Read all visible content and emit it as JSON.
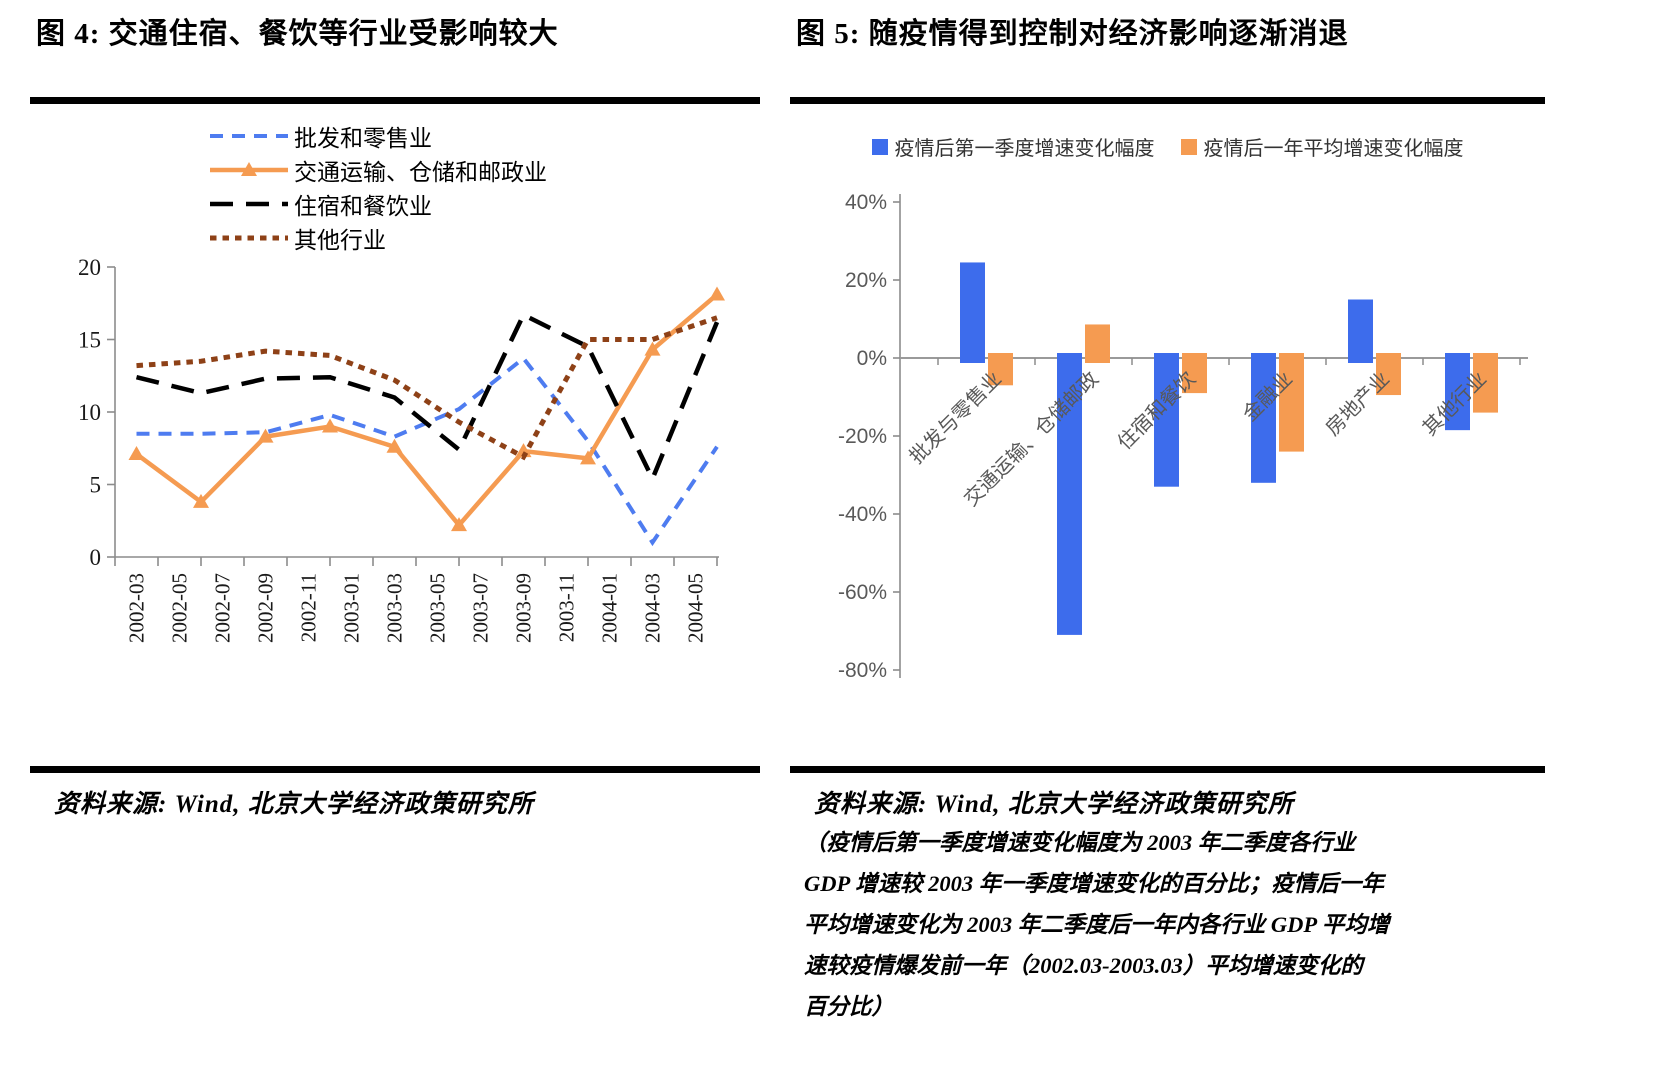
{
  "figure4": {
    "title": "图 4: 交通住宿、餐饮等行业受影响较大",
    "source": "资料来源: Wind, 北京大学经济政策研究所"
  },
  "figure5": {
    "title": "图 5: 随疫情得到控制对经济影响逐渐消退",
    "source": "资料来源: Wind, 北京大学经济政策研究所",
    "footnote_lines": [
      "（疫情后第一季度增速变化幅度为 2003 年二季度各行业",
      "GDP 增速较 2003 年一季度增速变化的百分比；疫情后一年",
      "平均增速变化为 2003 年二季度后一年内各行业 GDP 平均增",
      "速较疫情爆发前一年（2002.03-2003.03）平均增速变化的",
      "百分比）"
    ]
  },
  "colors": {
    "blue_line": "#4E7CF0",
    "orange": "#F59B51",
    "black": "#000000",
    "brown": "#8E4117",
    "blue_bar": "#3D6CEC",
    "axis_gray": "#8C8C8C",
    "label_gray": "#595959"
  },
  "chart_data": [
    {
      "type": "line",
      "title": "图 4: 交通住宿、餐饮等行业受影响较大",
      "x_tick_labels": [
        "2002-03",
        "2002-05",
        "2002-07",
        "2002-09",
        "2002-11",
        "2003-01",
        "2003-03",
        "2003-05",
        "2003-07",
        "2003-09",
        "2003-11",
        "2004-01",
        "2004-03",
        "2004-05"
      ],
      "x_points_quarterly": [
        "2002Q1",
        "2002Q2",
        "2002Q3",
        "2002Q4",
        "2003Q1",
        "2003Q2",
        "2003Q3",
        "2003Q4",
        "2004Q1",
        "2004Q2"
      ],
      "series": [
        {
          "name": "批发和零售业",
          "style": "dashed",
          "color": "#4E7CF0",
          "values": [
            8.5,
            8.5,
            8.6,
            9.8,
            8.3,
            10.2,
            13.7,
            8.0,
            1.0,
            7.6
          ]
        },
        {
          "name": "交通运输、仓储和邮政业",
          "style": "solid-triangle",
          "color": "#F59B51",
          "values": [
            7.1,
            3.8,
            8.3,
            9.0,
            7.6,
            2.2,
            7.3,
            6.8,
            14.3,
            18.1
          ]
        },
        {
          "name": "住宿和餐饮业",
          "style": "longdash",
          "color": "#000000",
          "values": [
            12.4,
            11.3,
            12.3,
            12.4,
            11.0,
            7.4,
            16.7,
            14.5,
            5.4,
            16.2
          ]
        },
        {
          "name": "其他行业",
          "style": "dot",
          "color": "#8E4117",
          "values": [
            13.2,
            13.5,
            14.2,
            13.9,
            12.2,
            9.3,
            6.9,
            15.0,
            15.0,
            16.5
          ]
        }
      ],
      "ylim": [
        0,
        20
      ],
      "ytick_labels": [
        "0",
        "5",
        "10",
        "15",
        "20"
      ],
      "grid": false,
      "legend_position": "top-left-stacked"
    },
    {
      "type": "bar",
      "title": "图 5: 随疫情得到控制对经济影响逐渐消退",
      "categories": [
        "批发与零售业",
        "交通运输、仓储邮政",
        "住宿和餐饮",
        "金融业",
        "房地产业",
        "其他行业"
      ],
      "series": [
        {
          "name": "疫情后第一季度增速变化幅度",
          "color": "#3D6CEC",
          "values": [
            24.5,
            -71,
            -33,
            -32,
            15,
            -18.5
          ]
        },
        {
          "name": "疫情后一年平均增速变化幅度",
          "color": "#F59B51",
          "values": [
            -7,
            8.6,
            -9,
            -24,
            -9.5,
            -14
          ]
        }
      ],
      "ylim": [
        -80,
        40
      ],
      "ytick_labels": [
        "40%",
        "20%",
        "0%",
        "-20%",
        "-40%",
        "-60%",
        "-80%"
      ],
      "yticks": [
        40,
        20,
        0,
        -20,
        -40,
        -60,
        -80
      ],
      "grid": false,
      "legend_position": "top-center"
    }
  ]
}
